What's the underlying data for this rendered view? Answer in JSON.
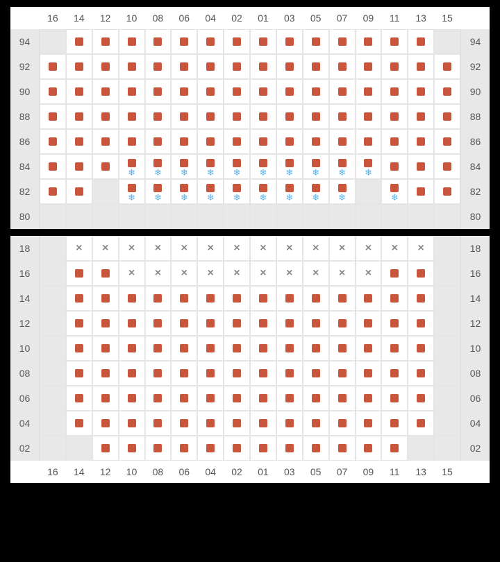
{
  "colors": {
    "seat_available": "#c9563c",
    "snowflake": "#5fb3e8",
    "unavailable_x": "#888888",
    "empty_bg": "#e8e8e8",
    "cell_border": "#e5e5e5",
    "label_text": "#555555",
    "page_bg": "#000000",
    "section_bg": "#ffffff"
  },
  "column_labels": [
    "16",
    "14",
    "12",
    "10",
    "08",
    "06",
    "04",
    "02",
    "01",
    "03",
    "05",
    "07",
    "09",
    "11",
    "13",
    "15"
  ],
  "sections": [
    {
      "id": "upper",
      "header_position": "top",
      "rows": [
        {
          "label": "94",
          "cells": [
            "E",
            "A",
            "A",
            "A",
            "A",
            "A",
            "A",
            "A",
            "A",
            "A",
            "A",
            "A",
            "A",
            "A",
            "A",
            "E"
          ]
        },
        {
          "label": "92",
          "cells": [
            "A",
            "A",
            "A",
            "A",
            "A",
            "A",
            "A",
            "A",
            "A",
            "A",
            "A",
            "A",
            "A",
            "A",
            "A",
            "A"
          ]
        },
        {
          "label": "90",
          "cells": [
            "A",
            "A",
            "A",
            "A",
            "A",
            "A",
            "A",
            "A",
            "A",
            "A",
            "A",
            "A",
            "A",
            "A",
            "A",
            "A"
          ]
        },
        {
          "label": "88",
          "cells": [
            "A",
            "A",
            "A",
            "A",
            "A",
            "A",
            "A",
            "A",
            "A",
            "A",
            "A",
            "A",
            "A",
            "A",
            "A",
            "A"
          ]
        },
        {
          "label": "86",
          "cells": [
            "A",
            "A",
            "A",
            "A",
            "A",
            "A",
            "A",
            "A",
            "A",
            "A",
            "A",
            "A",
            "A",
            "A",
            "A",
            "A"
          ]
        },
        {
          "label": "84",
          "cells": [
            "A",
            "A",
            "A",
            "S",
            "S",
            "S",
            "S",
            "S",
            "S",
            "S",
            "S",
            "S",
            "S",
            "A",
            "A",
            "A"
          ]
        },
        {
          "label": "82",
          "cells": [
            "A",
            "A",
            "E",
            "S",
            "S",
            "S",
            "S",
            "S",
            "S",
            "S",
            "S",
            "S",
            "E",
            "S",
            "A",
            "A"
          ]
        },
        {
          "label": "80",
          "cells": [
            "E",
            "E",
            "E",
            "E",
            "E",
            "E",
            "E",
            "E",
            "E",
            "E",
            "E",
            "E",
            "E",
            "E",
            "E",
            "E"
          ]
        }
      ]
    },
    {
      "id": "lower",
      "header_position": "bottom",
      "rows": [
        {
          "label": "18",
          "cells": [
            "E",
            "X",
            "X",
            "X",
            "X",
            "X",
            "X",
            "X",
            "X",
            "X",
            "X",
            "X",
            "X",
            "X",
            "X",
            "E"
          ]
        },
        {
          "label": "16",
          "cells": [
            "E",
            "A",
            "A",
            "X",
            "X",
            "X",
            "X",
            "X",
            "X",
            "X",
            "X",
            "X",
            "X",
            "A",
            "A",
            "E"
          ]
        },
        {
          "label": "14",
          "cells": [
            "E",
            "A",
            "A",
            "A",
            "A",
            "A",
            "A",
            "A",
            "A",
            "A",
            "A",
            "A",
            "A",
            "A",
            "A",
            "E"
          ]
        },
        {
          "label": "12",
          "cells": [
            "E",
            "A",
            "A",
            "A",
            "A",
            "A",
            "A",
            "A",
            "A",
            "A",
            "A",
            "A",
            "A",
            "A",
            "A",
            "E"
          ]
        },
        {
          "label": "10",
          "cells": [
            "E",
            "A",
            "A",
            "A",
            "A",
            "A",
            "A",
            "A",
            "A",
            "A",
            "A",
            "A",
            "A",
            "A",
            "A",
            "E"
          ]
        },
        {
          "label": "08",
          "cells": [
            "E",
            "A",
            "A",
            "A",
            "A",
            "A",
            "A",
            "A",
            "A",
            "A",
            "A",
            "A",
            "A",
            "A",
            "A",
            "E"
          ]
        },
        {
          "label": "06",
          "cells": [
            "E",
            "A",
            "A",
            "A",
            "A",
            "A",
            "A",
            "A",
            "A",
            "A",
            "A",
            "A",
            "A",
            "A",
            "A",
            "E"
          ]
        },
        {
          "label": "04",
          "cells": [
            "E",
            "A",
            "A",
            "A",
            "A",
            "A",
            "A",
            "A",
            "A",
            "A",
            "A",
            "A",
            "A",
            "A",
            "A",
            "E"
          ]
        },
        {
          "label": "02",
          "cells": [
            "E",
            "E",
            "A",
            "A",
            "A",
            "A",
            "A",
            "A",
            "A",
            "A",
            "A",
            "A",
            "A",
            "A",
            "E",
            "E"
          ]
        }
      ]
    }
  ],
  "legend": {
    "A": "available-seat",
    "E": "empty-no-seat",
    "X": "unavailable-seat",
    "S": "available-with-ac"
  }
}
